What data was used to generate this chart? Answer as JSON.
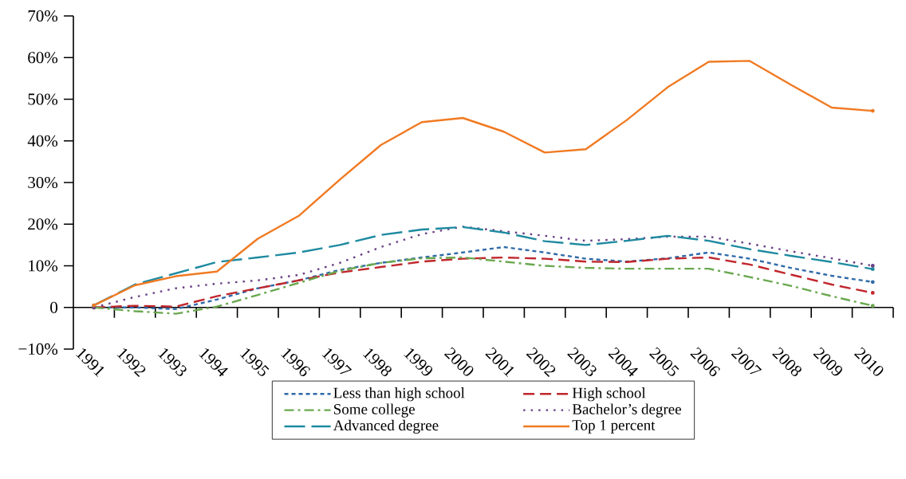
{
  "chart_data": {
    "type": "line",
    "categories": [
      "1991",
      "1992",
      "1993",
      "1994",
      "1995",
      "1996",
      "1997",
      "1998",
      "1999",
      "2000",
      "2001",
      "2002",
      "2003",
      "2004",
      "2005",
      "2006",
      "2007",
      "2008",
      "2009",
      "2010"
    ],
    "ylim": [
      -10,
      70
    ],
    "yticks": [
      {
        "value": -10,
        "label": "−10%"
      },
      0,
      {
        "value": 10,
        "label": "10%"
      },
      {
        "value": 20,
        "label": "20%"
      },
      {
        "value": 30,
        "label": "30%"
      },
      {
        "value": 40,
        "label": "40%"
      },
      {
        "value": 50,
        "label": "50%"
      },
      {
        "value": 60,
        "label": "60%"
      },
      {
        "value": 70,
        "label": "70%"
      }
    ],
    "legend": "bottom",
    "series": [
      {
        "name": "Less than high school",
        "color": "#2f6aa8",
        "line_style": "densedash",
        "values": [
          0,
          0,
          -0.4,
          1.9,
          4.6,
          6.5,
          9,
          10.7,
          12,
          13.2,
          14.5,
          13.2,
          11.7,
          11,
          11.8,
          13.2,
          11.7,
          9.5,
          7.6,
          6.1
        ]
      },
      {
        "name": "High school",
        "color": "#c0272d",
        "line_style": "dashed",
        "values": [
          0,
          0.4,
          0.2,
          2.7,
          4.6,
          6.5,
          8.4,
          9.7,
          11,
          11.7,
          12,
          11.7,
          11,
          10.9,
          11.7,
          12,
          10.3,
          7.9,
          5.5,
          3.5
        ]
      },
      {
        "name": "Some college",
        "color": "#6aa84f",
        "line_style": "dashdot",
        "values": [
          0,
          -0.9,
          -1.5,
          0.2,
          3,
          5.9,
          8.8,
          10.7,
          11.8,
          12,
          11,
          10,
          9.5,
          9.3,
          9.3,
          9.3,
          7.3,
          5.2,
          2.7,
          0.4
        ]
      },
      {
        "name": "Bachelor’s degree",
        "color": "#6b3f86",
        "line_style": "dotted",
        "values": [
          0,
          2.5,
          4.6,
          5.7,
          6.5,
          7.8,
          10.7,
          14.5,
          17.6,
          19.4,
          18.3,
          17.2,
          16,
          16.4,
          17,
          17,
          15.3,
          13.5,
          11.8,
          10
        ]
      },
      {
        "name": "Advanced degree",
        "color": "#1e8aa0",
        "line_style": "longdash",
        "values": [
          0.5,
          5.5,
          8.2,
          10.9,
          12,
          13.2,
          15,
          17.4,
          18.7,
          19.3,
          18,
          15.9,
          15,
          16,
          17.2,
          16,
          14,
          12.4,
          10.9,
          9.2
        ]
      },
      {
        "name": "Top 1 percent",
        "color": "#f07a22",
        "line_style": "solid",
        "values": [
          0.5,
          5.3,
          7.5,
          8.6,
          16.5,
          22,
          30.7,
          39,
          44.5,
          45.5,
          42.2,
          37.2,
          38,
          45,
          52.9,
          59,
          59.2,
          53.5,
          48,
          47.2
        ]
      }
    ]
  }
}
